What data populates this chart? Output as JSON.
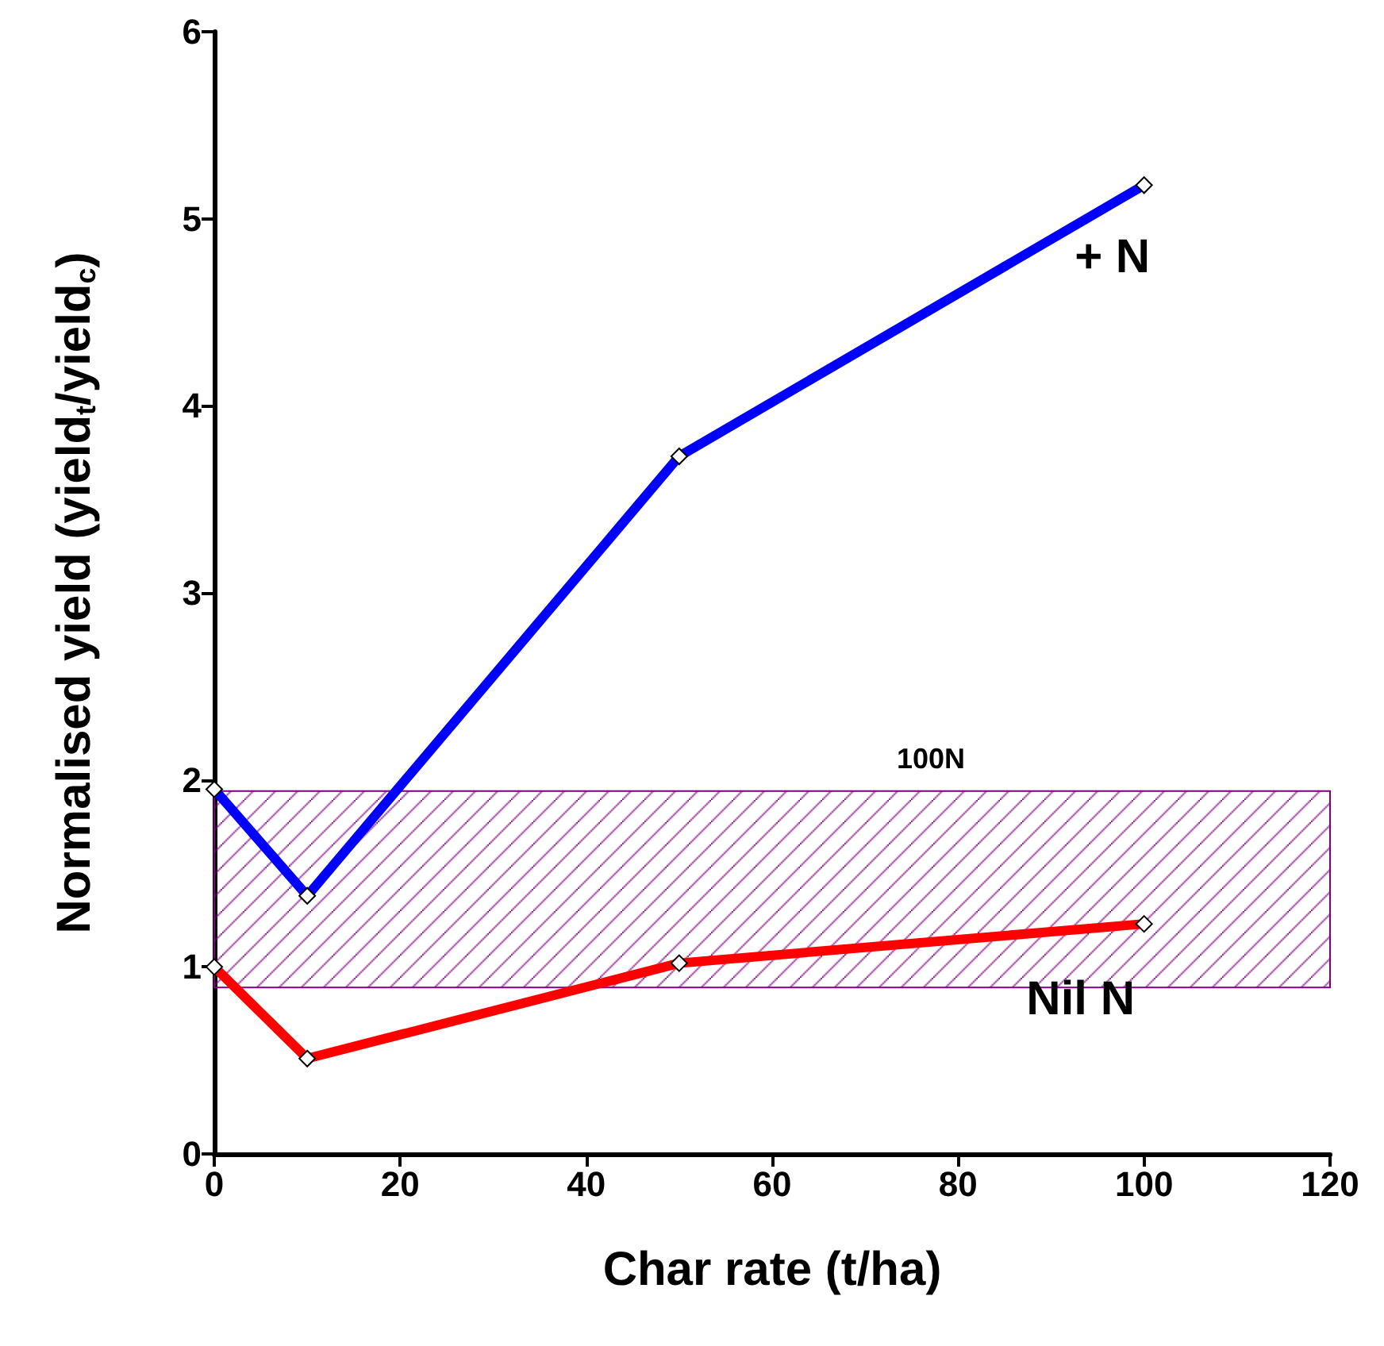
{
  "chart_data": {
    "type": "line",
    "xlabel": "Char rate (t/ha)",
    "ylabel": "Normalised yield (yield$_{t}$/yield$_{c}$)",
    "x": [
      0,
      10,
      50,
      100
    ],
    "series": [
      {
        "name": "+ N",
        "color": "#0000ff",
        "values": [
          1.95,
          1.38,
          3.73,
          5.18
        ]
      },
      {
        "name": "Nil N",
        "color": "#ff0000",
        "values": [
          1.0,
          0.51,
          1.02,
          1.23
        ]
      }
    ],
    "xlim": [
      0,
      120
    ],
    "xticks": [
      0,
      20,
      40,
      60,
      80,
      100,
      120
    ],
    "ylim": [
      0,
      6
    ],
    "yticks": [
      0,
      1,
      2,
      3,
      4,
      5,
      6
    ],
    "bands": [
      {
        "axis": "y",
        "from": 0.89,
        "to": 1.94,
        "label": "100N",
        "color": "#800080"
      }
    ],
    "marker": "diamond",
    "line_style": "solid",
    "grid": false,
    "legend": false
  }
}
